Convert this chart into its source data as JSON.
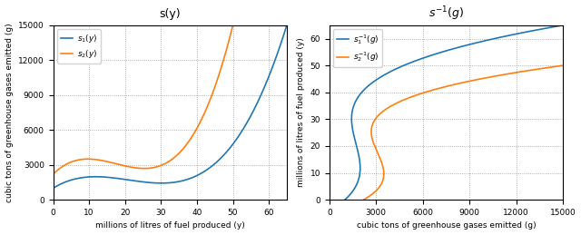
{
  "title_left": "s(y)",
  "title_right": "$s^{-1}(g)$",
  "xlabel_left": "millions of litres of fuel produced (y)",
  "ylabel_left": "cubic tons of greenhouse gases emitted (g)",
  "xlabel_right": "cubic tons of greenhouse gases emitted (g)",
  "ylabel_right": "millions of litres of fuel produced (y)",
  "xlim_left": [
    0,
    65
  ],
  "ylim_left": [
    0,
    15000
  ],
  "xlim_right": [
    0,
    15000
  ],
  "ylim_right": [
    0,
    65
  ],
  "xticks_left": [
    0,
    10,
    20,
    30,
    40,
    50,
    60
  ],
  "yticks_left": [
    0,
    3000,
    6000,
    9000,
    12000,
    15000
  ],
  "xticks_right": [
    0,
    3000,
    6000,
    9000,
    12000,
    15000
  ],
  "yticks_right": [
    0,
    10,
    20,
    30,
    40,
    50,
    60
  ],
  "color_s1": "#1f77b4",
  "color_s2": "#ff7f0e",
  "legend_left": [
    "$s_1(y)$",
    "$s_2(y)$"
  ],
  "legend_right": [
    "$s_1^{-1}(g)$",
    "$s_2^{-1}(g)$"
  ],
  "figsize": [
    6.4,
    2.59
  ],
  "dpi": 100
}
